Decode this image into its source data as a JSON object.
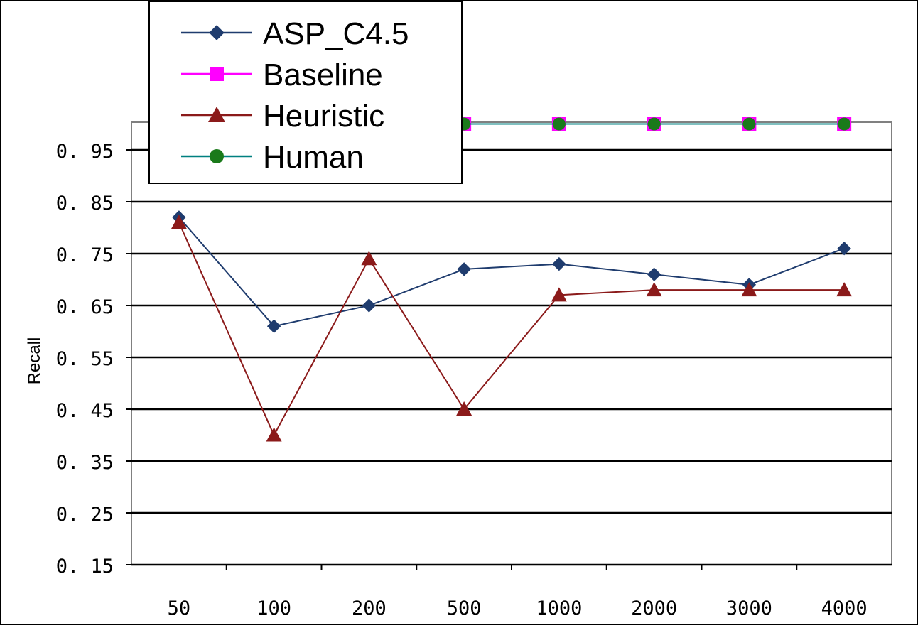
{
  "chart_data": {
    "type": "line",
    "ylabel": "Recall",
    "xlabel": "",
    "title": "",
    "categories": [
      "50",
      "100",
      "200",
      "500",
      "1000",
      "2000",
      "3000",
      "4000"
    ],
    "ylim": [
      0.15,
      1.0
    ],
    "yticks": [
      "0. 15",
      "0. 25",
      "0. 35",
      "0. 45",
      "0. 55",
      "0. 65",
      "0. 75",
      "0. 85",
      "0. 95"
    ],
    "ytick_values": [
      0.15,
      0.25,
      0.35,
      0.45,
      0.55,
      0.65,
      0.75,
      0.85,
      0.95
    ],
    "grid": "horizontal",
    "legend_position": "top-left",
    "series": [
      {
        "name": "ASP_C4.5",
        "color": "#1f3c6e",
        "marker": "diamond",
        "values": [
          0.82,
          0.61,
          0.65,
          0.72,
          0.73,
          0.71,
          0.69,
          0.76
        ]
      },
      {
        "name": "Baseline",
        "color": "#ff00ff",
        "marker": "square",
        "values": [
          1.0,
          1.0,
          1.0,
          1.0,
          1.0,
          1.0,
          1.0,
          1.0
        ]
      },
      {
        "name": "Heuristic",
        "color": "#8b1a1a",
        "marker": "triangle",
        "values": [
          0.81,
          0.4,
          0.74,
          0.45,
          0.67,
          0.68,
          0.68,
          0.68
        ]
      },
      {
        "name": "Human",
        "color": "#008080",
        "marker": "circle",
        "marker_color": "#1a7a1a",
        "values": [
          1.0,
          1.0,
          1.0,
          1.0,
          1.0,
          1.0,
          1.0,
          1.0
        ]
      }
    ]
  }
}
